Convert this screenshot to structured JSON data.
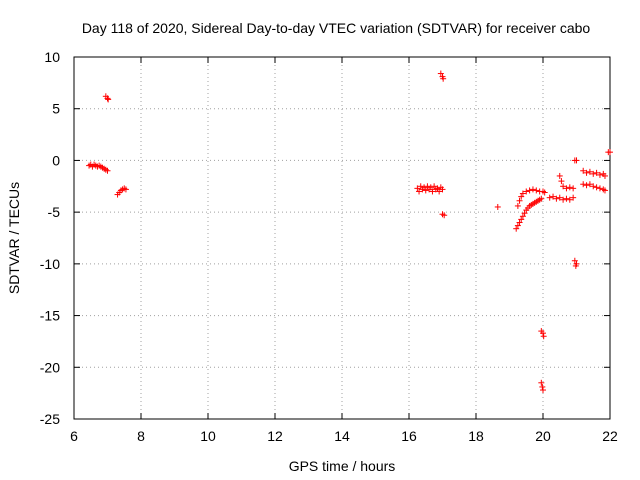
{
  "chart_data": {
    "type": "scatter",
    "title": "Day 118 of 2020, Sidereal Day-to-day VTEC variation (SDTVAR) for receiver cabo",
    "xlabel": "GPS time / hours",
    "ylabel": "SDTVAR / TECUs",
    "xlim": [
      6,
      22
    ],
    "ylim": [
      -25,
      10
    ],
    "x_ticks": [
      6,
      8,
      10,
      12,
      14,
      16,
      18,
      20,
      22
    ],
    "y_ticks": [
      -25,
      -20,
      -15,
      -10,
      -5,
      0,
      5,
      10
    ],
    "grid": true,
    "marker": "+",
    "color": "#ff0000",
    "series": [
      {
        "name": "SDTVAR",
        "points": [
          [
            6.45,
            -0.5
          ],
          [
            6.5,
            -0.4
          ],
          [
            6.55,
            -0.6
          ],
          [
            6.6,
            -0.4
          ],
          [
            6.65,
            -0.5
          ],
          [
            6.7,
            -0.6
          ],
          [
            6.75,
            -0.5
          ],
          [
            6.8,
            -0.6
          ],
          [
            6.85,
            -0.7
          ],
          [
            6.9,
            -0.8
          ],
          [
            6.95,
            -0.9
          ],
          [
            7.0,
            -1.0
          ],
          [
            6.95,
            6.2
          ],
          [
            7.0,
            6.0
          ],
          [
            7.02,
            5.9
          ],
          [
            7.3,
            -3.3
          ],
          [
            7.35,
            -3.1
          ],
          [
            7.4,
            -2.9
          ],
          [
            7.45,
            -2.8
          ],
          [
            7.5,
            -2.7
          ],
          [
            7.55,
            -2.8
          ],
          [
            16.25,
            -2.7
          ],
          [
            16.3,
            -3.0
          ],
          [
            16.35,
            -2.5
          ],
          [
            16.4,
            -2.8
          ],
          [
            16.45,
            -2.6
          ],
          [
            16.5,
            -2.9
          ],
          [
            16.55,
            -2.5
          ],
          [
            16.6,
            -2.8
          ],
          [
            16.65,
            -2.6
          ],
          [
            16.7,
            -3.0
          ],
          [
            16.75,
            -2.5
          ],
          [
            16.8,
            -2.8
          ],
          [
            16.85,
            -2.7
          ],
          [
            16.9,
            -3.0
          ],
          [
            16.95,
            -2.6
          ],
          [
            17.0,
            -2.8
          ],
          [
            16.95,
            8.4
          ],
          [
            17.0,
            8.1
          ],
          [
            17.02,
            7.9
          ],
          [
            17.0,
            -5.2
          ],
          [
            17.05,
            -5.3
          ],
          [
            18.65,
            -4.5
          ],
          [
            19.2,
            -6.6
          ],
          [
            19.25,
            -6.3
          ],
          [
            19.3,
            -6.0
          ],
          [
            19.35,
            -5.7
          ],
          [
            19.4,
            -5.4
          ],
          [
            19.45,
            -5.1
          ],
          [
            19.5,
            -4.8
          ],
          [
            19.55,
            -4.6
          ],
          [
            19.6,
            -4.4
          ],
          [
            19.65,
            -4.3
          ],
          [
            19.7,
            -4.2
          ],
          [
            19.75,
            -4.1
          ],
          [
            19.8,
            -4.0
          ],
          [
            19.85,
            -3.9
          ],
          [
            19.9,
            -3.8
          ],
          [
            19.95,
            -3.7
          ],
          [
            19.25,
            -4.4
          ],
          [
            19.3,
            -3.9
          ],
          [
            19.35,
            -3.5
          ],
          [
            19.4,
            -3.2
          ],
          [
            19.5,
            -3.0
          ],
          [
            19.6,
            -2.9
          ],
          [
            19.7,
            -2.8
          ],
          [
            19.8,
            -2.9
          ],
          [
            19.9,
            -3.0
          ],
          [
            20.0,
            -3.0
          ],
          [
            20.05,
            -3.1
          ],
          [
            19.95,
            -16.5
          ],
          [
            20.0,
            -16.7
          ],
          [
            20.02,
            -17.0
          ],
          [
            19.95,
            -21.5
          ],
          [
            19.98,
            -21.9
          ],
          [
            20.0,
            -22.2
          ],
          [
            20.2,
            -3.6
          ],
          [
            20.3,
            -3.5
          ],
          [
            20.4,
            -3.7
          ],
          [
            20.5,
            -3.6
          ],
          [
            20.6,
            -3.8
          ],
          [
            20.7,
            -3.7
          ],
          [
            20.8,
            -3.8
          ],
          [
            20.9,
            -3.6
          ],
          [
            20.5,
            -1.5
          ],
          [
            20.55,
            -2.0
          ],
          [
            20.6,
            -2.5
          ],
          [
            20.7,
            -2.7
          ],
          [
            20.8,
            -2.6
          ],
          [
            20.9,
            -2.7
          ],
          [
            20.95,
            0.0
          ],
          [
            21.0,
            0.0
          ],
          [
            20.95,
            -9.7
          ],
          [
            21.0,
            -10.0
          ],
          [
            20.98,
            -10.2
          ],
          [
            21.2,
            -1.0
          ],
          [
            21.3,
            -1.2
          ],
          [
            21.4,
            -1.1
          ],
          [
            21.5,
            -1.3
          ],
          [
            21.6,
            -1.2
          ],
          [
            21.7,
            -1.4
          ],
          [
            21.8,
            -1.3
          ],
          [
            21.85,
            -1.5
          ],
          [
            21.2,
            -2.3
          ],
          [
            21.3,
            -2.4
          ],
          [
            21.4,
            -2.3
          ],
          [
            21.5,
            -2.5
          ],
          [
            21.6,
            -2.6
          ],
          [
            21.7,
            -2.7
          ],
          [
            21.8,
            -2.8
          ],
          [
            21.85,
            -2.9
          ],
          [
            21.95,
            0.8
          ],
          [
            22.0,
            0.8
          ]
        ]
      }
    ]
  }
}
